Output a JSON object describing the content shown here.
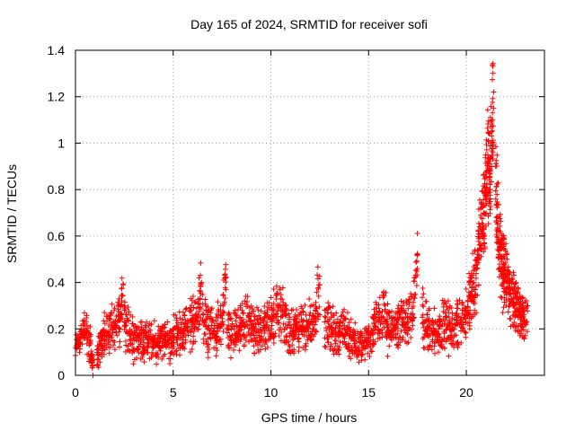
{
  "chart_data": {
    "type": "scatter",
    "title": "Day 165 of 2024, SRMTID for receiver sofi",
    "xlabel": "GPS time / hours",
    "ylabel": "SRMTID / TECUs",
    "xlim": [
      0,
      24
    ],
    "ylim": [
      0,
      1.4
    ],
    "xticks": [
      0,
      5,
      10,
      15,
      20
    ],
    "xtick_labels": [
      "0",
      "5",
      "10",
      "15",
      "20"
    ],
    "yticks": [
      0,
      0.2,
      0.4,
      0.6,
      0.8,
      1.0,
      1.2,
      1.4
    ],
    "ytick_labels": [
      "0",
      "0.2",
      "0.4",
      "0.6",
      "0.8",
      "1",
      "1.2",
      "1.4"
    ],
    "grid": true,
    "marker": "+",
    "color": "#ff0000",
    "series": [
      {
        "name": "SRMTID",
        "x": [
          0.0,
          0.25,
          0.5,
          0.75,
          0.9,
          1.1,
          1.3,
          1.5,
          1.75,
          2.0,
          2.25,
          2.45,
          2.5,
          2.75,
          3.0,
          3.25,
          3.5,
          3.75,
          4.0,
          4.25,
          4.5,
          4.75,
          5.0,
          5.25,
          5.5,
          5.75,
          6.0,
          6.25,
          6.45,
          6.5,
          6.75,
          7.0,
          7.25,
          7.5,
          7.7,
          7.75,
          8.0,
          8.25,
          8.5,
          8.75,
          9.0,
          9.25,
          9.5,
          9.75,
          10.0,
          10.25,
          10.5,
          10.75,
          11.0,
          11.25,
          11.5,
          11.75,
          12.0,
          12.25,
          12.5,
          12.75,
          13.0,
          13.25,
          13.5,
          13.75,
          14.0,
          14.25,
          14.5,
          14.75,
          15.0,
          15.25,
          15.5,
          15.75,
          16.0,
          16.25,
          16.5,
          16.75,
          17.0,
          17.25,
          17.5,
          17.75,
          18.0,
          18.25,
          18.5,
          18.75,
          19.0,
          19.25,
          19.5,
          19.75,
          20.0,
          20.2,
          20.4,
          20.6,
          20.75,
          20.9,
          21.0,
          21.1,
          21.2,
          21.3,
          21.4,
          21.5,
          21.6,
          21.7,
          21.8,
          21.9,
          22.0,
          22.15,
          22.3,
          22.45,
          22.6,
          22.75,
          22.9
        ],
        "y": [
          0.12,
          0.16,
          0.2,
          0.14,
          0.0,
          0.11,
          0.13,
          0.17,
          0.19,
          0.21,
          0.24,
          0.39,
          0.23,
          0.18,
          0.15,
          0.17,
          0.14,
          0.16,
          0.15,
          0.13,
          0.16,
          0.14,
          0.17,
          0.18,
          0.19,
          0.21,
          0.23,
          0.26,
          0.4,
          0.24,
          0.2,
          0.18,
          0.19,
          0.22,
          0.42,
          0.2,
          0.17,
          0.18,
          0.21,
          0.23,
          0.22,
          0.2,
          0.19,
          0.21,
          0.24,
          0.26,
          0.28,
          0.22,
          0.18,
          0.19,
          0.21,
          0.2,
          0.22,
          0.25,
          0.39,
          0.23,
          0.21,
          0.19,
          0.18,
          0.2,
          0.17,
          0.15,
          0.12,
          0.14,
          0.16,
          0.2,
          0.23,
          0.25,
          0.21,
          0.19,
          0.22,
          0.24,
          0.23,
          0.26,
          0.52,
          0.25,
          0.2,
          0.19,
          0.18,
          0.21,
          0.2,
          0.19,
          0.22,
          0.24,
          0.28,
          0.33,
          0.4,
          0.5,
          0.62,
          0.7,
          0.85,
          0.95,
          0.8,
          1.05,
          1.22,
          0.9,
          0.62,
          0.55,
          0.5,
          0.48,
          0.42,
          0.36,
          0.33,
          0.3,
          0.28,
          0.26,
          0.24
        ],
        "spread": [
          0.05,
          0.06,
          0.07,
          0.06,
          0.0,
          0.06,
          0.07,
          0.07,
          0.07,
          0.08,
          0.08,
          0.0,
          0.08,
          0.07,
          0.07,
          0.07,
          0.06,
          0.06,
          0.07,
          0.06,
          0.06,
          0.07,
          0.07,
          0.07,
          0.07,
          0.08,
          0.08,
          0.09,
          0.0,
          0.09,
          0.08,
          0.07,
          0.08,
          0.08,
          0.0,
          0.08,
          0.07,
          0.07,
          0.08,
          0.08,
          0.08,
          0.08,
          0.07,
          0.08,
          0.09,
          0.09,
          0.09,
          0.08,
          0.07,
          0.07,
          0.08,
          0.08,
          0.08,
          0.09,
          0.0,
          0.08,
          0.08,
          0.07,
          0.07,
          0.07,
          0.07,
          0.06,
          0.05,
          0.06,
          0.07,
          0.08,
          0.08,
          0.09,
          0.08,
          0.07,
          0.08,
          0.09,
          0.09,
          0.09,
          0.0,
          0.09,
          0.08,
          0.08,
          0.07,
          0.08,
          0.08,
          0.07,
          0.08,
          0.08,
          0.09,
          0.1,
          0.12,
          0.14,
          0.15,
          0.17,
          0.18,
          0.18,
          0.17,
          0.18,
          0.0,
          0.18,
          0.16,
          0.15,
          0.14,
          0.13,
          0.12,
          0.11,
          0.1,
          0.09,
          0.08,
          0.07,
          0.06
        ]
      }
    ]
  }
}
